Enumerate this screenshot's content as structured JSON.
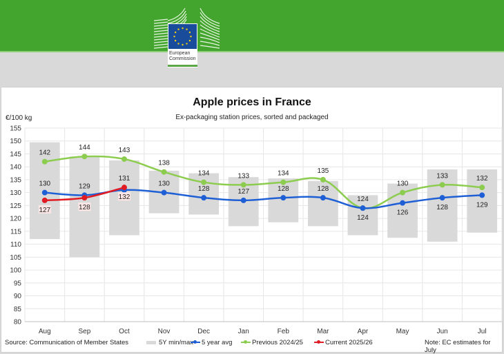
{
  "header": {
    "logo_text_line1": "European",
    "logo_text_line2": "Commission",
    "brand_color": "#43a52e"
  },
  "chart_data": {
    "type": "line",
    "title": "Apple prices in France",
    "subtitle": "Ex-packaging station prices, sorted and packaged",
    "ylabel": "€/100 kg",
    "xlabel": "",
    "ylim": [
      80,
      155
    ],
    "yticks": [
      80,
      85,
      90,
      95,
      100,
      105,
      110,
      115,
      120,
      125,
      130,
      135,
      140,
      145,
      150,
      155
    ],
    "grid": true,
    "legend_position": "bottom",
    "categories": [
      "Aug",
      "Sep",
      "Oct",
      "Nov",
      "Dec",
      "Jan",
      "Feb",
      "Mar",
      "Apr",
      "May",
      "Jun",
      "Jul"
    ],
    "range_bars": {
      "name": "5Y min/max",
      "color": "#d9d9d9",
      "min": [
        112,
        105,
        113.5,
        122,
        121.5,
        117,
        118.5,
        117,
        113.5,
        112.5,
        111,
        114.5
      ],
      "max": [
        149.5,
        144,
        142.5,
        138.5,
        137.5,
        136,
        135.5,
        134.5,
        129,
        133.5,
        139,
        139
      ]
    },
    "series": [
      {
        "name": "5 year avg",
        "color": "#1f5fd6",
        "values": [
          130,
          129,
          131,
          130,
          128,
          127,
          128,
          128,
          124,
          126,
          128,
          129
        ]
      },
      {
        "name": "Previous 2024/25",
        "color": "#8ccc4e",
        "values": [
          142,
          144,
          143,
          138,
          134,
          133,
          134,
          135,
          124,
          130,
          133,
          132
        ]
      },
      {
        "name": "Current 2025/26",
        "color": "#e01b24",
        "values": [
          127,
          128,
          132,
          null,
          null,
          null,
          null,
          null,
          null,
          null,
          null,
          null
        ]
      }
    ],
    "annotations": {
      "source": "Source: Communication of Member States",
      "note": "Note: EC estimates for July"
    }
  },
  "legend": {
    "range": "5Y min/max",
    "avg": "5 year avg",
    "prev": "Previous 2024/25",
    "curr": "Current 2025/26"
  }
}
